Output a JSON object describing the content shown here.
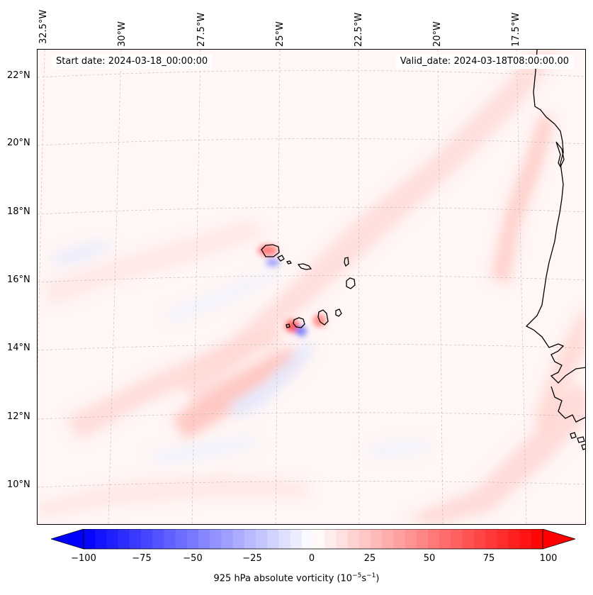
{
  "map": {
    "title_left": "Start date: 2024-03-18_00:00:00",
    "title_right": "Valid_date: 2024-03-18T08:00:00.00",
    "longitude_labels": [
      "32.5°W",
      "30°W",
      "27.5°W",
      "25°W",
      "22.5°W",
      "20°W",
      "17.5°W"
    ],
    "latitude_labels": [
      "22°N",
      "20°N",
      "18°N",
      "16°N",
      "14°N",
      "12°N",
      "10°N"
    ],
    "field": "925 hPa absolute vorticity",
    "colors": {
      "negative_max": "#0000ff",
      "zero": "#ffffff",
      "positive_max": "#ff0000",
      "background_tint": "#fff6f5",
      "coastline": "#000000"
    }
  },
  "colorbar": {
    "ticks": [
      "−100",
      "−75",
      "−50",
      "−25",
      "0",
      "25",
      "50",
      "75",
      "100"
    ],
    "label_text": "925 hPa absolute vorticity (10",
    "label_exp1": "−5",
    "label_mid": "s",
    "label_exp2": "−1",
    "label_end": ")"
  }
}
